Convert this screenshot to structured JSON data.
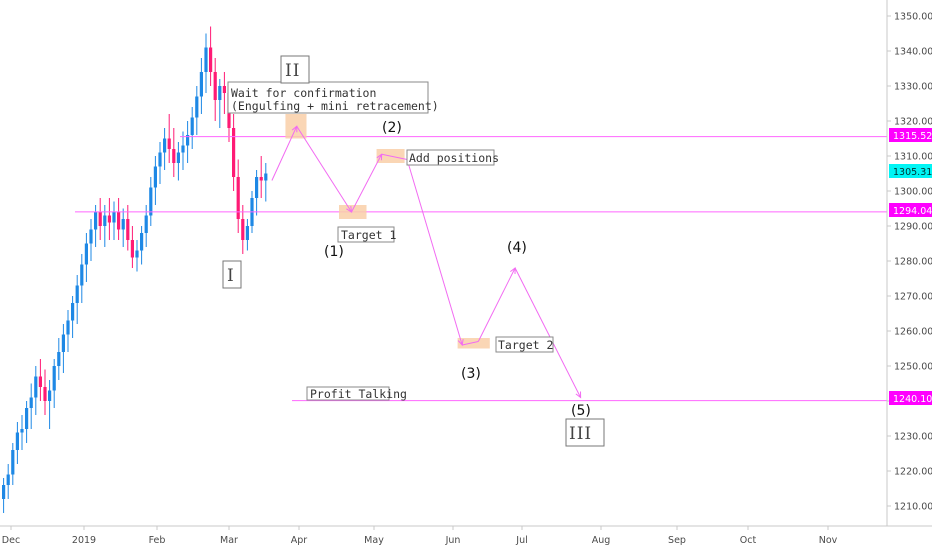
{
  "chart_data": {
    "type": "candlestick",
    "y_axis": {
      "ticks": [
        "1350.000",
        "1340.000",
        "1330.000",
        "1320.000",
        "1310.000",
        "1300.000",
        "1290.000",
        "1280.000",
        "1270.000",
        "1260.000",
        "1250.000",
        "1240.000",
        "1230.000",
        "1220.000",
        "1210.000"
      ],
      "range": [
        1203,
        1353
      ],
      "side": "right"
    },
    "x_axis": {
      "ticks": [
        "Dec",
        "2019",
        "Feb",
        "Mar",
        "Apr",
        "May",
        "Jun",
        "Jul",
        "Aug",
        "Sep",
        "Oct",
        "Nov"
      ],
      "range": [
        "2018-11-26",
        "2019-12-01"
      ]
    },
    "price_lines": [
      {
        "value": 1315.521,
        "label": "1315.521"
      },
      {
        "value": 1294.047,
        "label": "1294.047"
      },
      {
        "value": 1240.108,
        "label": "1240.108"
      }
    ],
    "current_price": {
      "value": 1305.316,
      "label": "1305.316"
    },
    "annotations": {
      "wait_line1": "Wait for confirmation",
      "wait_line2": "(Engulfing + mini retracement)",
      "add_positions": "Add positions",
      "target1": "Target 1",
      "target2": "Target 2",
      "profit": "Profit Talking"
    },
    "wave_labels": [
      "(1)",
      "(2)",
      "(3)",
      "(4)",
      "(5)"
    ],
    "roman_labels": [
      "I",
      "II",
      "III"
    ],
    "projected_path": [
      {
        "date": "2019-03-20",
        "price": 1303
      },
      {
        "date": "2019-03-31",
        "price": 1318.5
      },
      {
        "date": "2019-04-22",
        "price": 1294
      },
      {
        "date": "2019-05-04",
        "price": 1310.5
      },
      {
        "date": "2019-05-14",
        "price": 1309
      },
      {
        "date": "2019-06-05",
        "price": 1256
      },
      {
        "date": "2019-06-12",
        "price": 1257
      },
      {
        "date": "2019-06-28",
        "price": 1278
      },
      {
        "date": "2019-07-24",
        "price": 1241
      }
    ],
    "zones": [
      {
        "from": "2019-03-26",
        "to": "2019-04-04",
        "low": 1315,
        "high": 1322
      },
      {
        "from": "2019-04-17",
        "to": "2019-04-28",
        "low": 1292,
        "high": 1296
      },
      {
        "from": "2019-05-02",
        "to": "2019-05-13",
        "low": 1308,
        "high": 1312
      },
      {
        "from": "2019-06-03",
        "to": "2019-06-17",
        "low": 1255,
        "high": 1258
      }
    ],
    "candles_ohlc": [
      [
        1212,
        1218,
        1208,
        1216
      ],
      [
        1216,
        1222,
        1212,
        1219
      ],
      [
        1219,
        1228,
        1216,
        1226
      ],
      [
        1226,
        1234,
        1222,
        1231
      ],
      [
        1231,
        1236,
        1226,
        1232
      ],
      [
        1232,
        1240,
        1228,
        1238
      ],
      [
        1238,
        1245,
        1232,
        1241
      ],
      [
        1241,
        1250,
        1236,
        1247
      ],
      [
        1247,
        1252,
        1240,
        1244
      ],
      [
        1244,
        1249,
        1236,
        1240
      ],
      [
        1240,
        1246,
        1232,
        1243
      ],
      [
        1243,
        1252,
        1238,
        1250
      ],
      [
        1250,
        1258,
        1246,
        1254
      ],
      [
        1254,
        1262,
        1248,
        1259
      ],
      [
        1259,
        1266,
        1254,
        1263
      ],
      [
        1263,
        1270,
        1258,
        1268
      ],
      [
        1268,
        1276,
        1262,
        1273
      ],
      [
        1273,
        1282,
        1268,
        1279
      ],
      [
        1279,
        1288,
        1274,
        1285
      ],
      [
        1285,
        1292,
        1280,
        1289
      ],
      [
        1289,
        1296,
        1284,
        1294
      ],
      [
        1294,
        1298,
        1286,
        1290
      ],
      [
        1290,
        1296,
        1284,
        1293
      ],
      [
        1293,
        1298,
        1286,
        1291
      ],
      [
        1291,
        1297,
        1286,
        1294
      ],
      [
        1294,
        1298,
        1286,
        1289
      ],
      [
        1289,
        1295,
        1284,
        1292
      ],
      [
        1292,
        1296,
        1283,
        1286
      ],
      [
        1286,
        1290,
        1278,
        1281
      ],
      [
        1281,
        1286,
        1277,
        1283
      ],
      [
        1283,
        1290,
        1279,
        1288
      ],
      [
        1288,
        1296,
        1284,
        1293
      ],
      [
        1293,
        1304,
        1290,
        1301
      ],
      [
        1301,
        1310,
        1296,
        1307
      ],
      [
        1307,
        1314,
        1302,
        1311
      ],
      [
        1311,
        1318,
        1306,
        1315
      ],
      [
        1315,
        1322,
        1308,
        1312
      ],
      [
        1312,
        1318,
        1304,
        1308
      ],
      [
        1308,
        1314,
        1303,
        1311
      ],
      [
        1311,
        1317,
        1306,
        1313
      ],
      [
        1313,
        1320,
        1308,
        1316
      ],
      [
        1316,
        1324,
        1312,
        1321
      ],
      [
        1321,
        1330,
        1316,
        1327
      ],
      [
        1327,
        1338,
        1322,
        1334
      ],
      [
        1334,
        1345,
        1328,
        1341
      ],
      [
        1341,
        1347,
        1330,
        1334
      ],
      [
        1334,
        1338,
        1320,
        1326
      ],
      [
        1326,
        1332,
        1318,
        1330
      ],
      [
        1330,
        1334,
        1322,
        1328
      ],
      [
        1328,
        1331,
        1314,
        1318
      ],
      [
        1318,
        1322,
        1300,
        1304
      ],
      [
        1304,
        1309,
        1288,
        1292
      ],
      [
        1292,
        1296,
        1282,
        1286
      ],
      [
        1286,
        1292,
        1283,
        1290
      ],
      [
        1290,
        1300,
        1288,
        1298
      ],
      [
        1298,
        1306,
        1293,
        1304
      ],
      [
        1304,
        1310,
        1298,
        1303
      ],
      [
        1303,
        1308,
        1297,
        1305
      ]
    ]
  }
}
